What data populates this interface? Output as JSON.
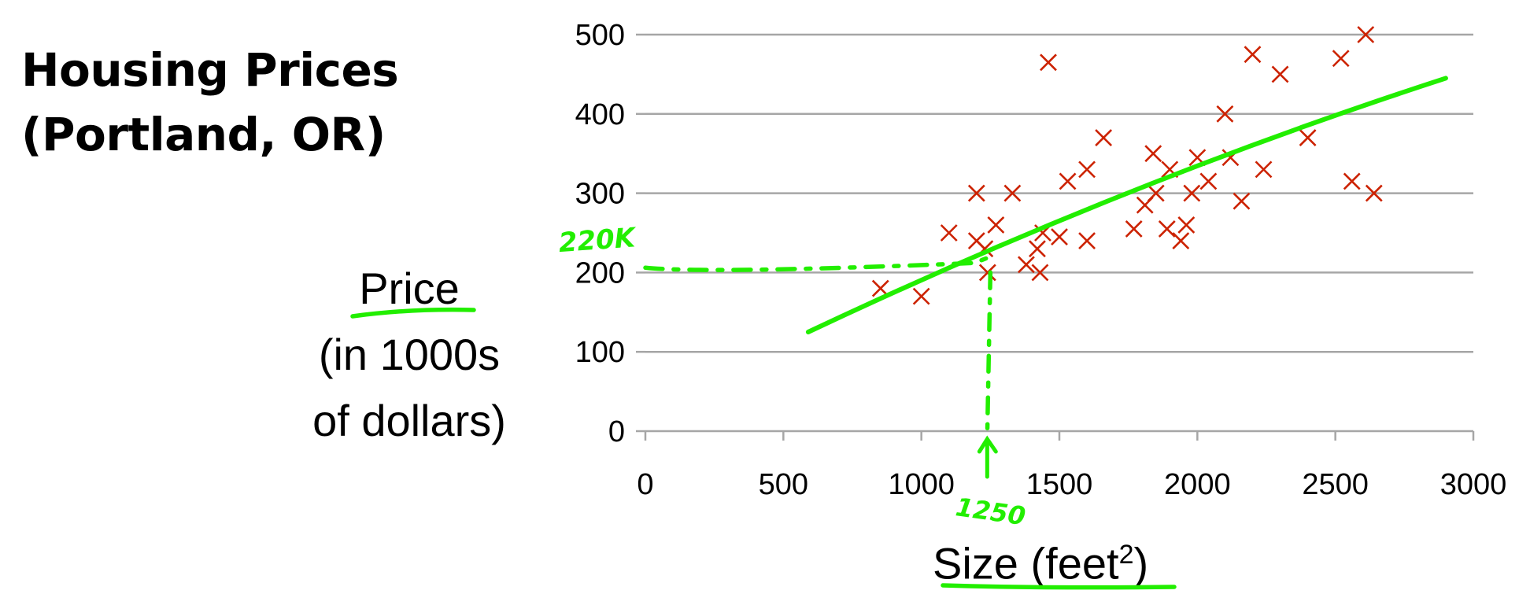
{
  "title": {
    "line1": "Housing Prices",
    "line2": "(Portland, OR)"
  },
  "chart_data": {
    "type": "scatter",
    "title": "Housing Prices (Portland, OR)",
    "ylabel": {
      "line1": "Price",
      "line2": "(in 1000s",
      "line3": "of dollars)"
    },
    "xlabel": {
      "text": "Size (feet",
      "sup": "2",
      "close": ")"
    },
    "xlim": [
      0,
      3000
    ],
    "ylim": [
      0,
      500
    ],
    "xticks": [
      0,
      500,
      1000,
      1500,
      2000,
      2500,
      3000
    ],
    "yticks": [
      0,
      100,
      200,
      300,
      400,
      500
    ],
    "grid": "horizontal",
    "series": [
      {
        "marker": "x",
        "color": "#cc2200",
        "points": [
          [
            852,
            180
          ],
          [
            1000,
            170
          ],
          [
            1100,
            250
          ],
          [
            1200,
            300
          ],
          [
            1200,
            240
          ],
          [
            1230,
            230
          ],
          [
            1240,
            200
          ],
          [
            1270,
            260
          ],
          [
            1330,
            300
          ],
          [
            1380,
            210
          ],
          [
            1420,
            230
          ],
          [
            1430,
            200
          ],
          [
            1440,
            250
          ],
          [
            1460,
            465
          ],
          [
            1500,
            245
          ],
          [
            1530,
            315
          ],
          [
            1600,
            330
          ],
          [
            1600,
            240
          ],
          [
            1660,
            370
          ],
          [
            1770,
            255
          ],
          [
            1810,
            285
          ],
          [
            1840,
            350
          ],
          [
            1850,
            300
          ],
          [
            1890,
            255
          ],
          [
            1900,
            330
          ],
          [
            1940,
            240
          ],
          [
            1960,
            260
          ],
          [
            1980,
            300
          ],
          [
            2000,
            345
          ],
          [
            2040,
            315
          ],
          [
            2100,
            400
          ],
          [
            2120,
            345
          ],
          [
            2160,
            290
          ],
          [
            2200,
            475
          ],
          [
            2240,
            330
          ],
          [
            2300,
            450
          ],
          [
            2400,
            370
          ],
          [
            2520,
            470
          ],
          [
            2560,
            315
          ],
          [
            2610,
            500
          ],
          [
            2640,
            300
          ]
        ]
      }
    ],
    "fit_line": {
      "color": "#22ee00",
      "x": [
        590,
        2900
      ],
      "y": [
        125,
        445
      ]
    },
    "annotations": [
      {
        "text": "220K",
        "x": 1250,
        "y": 220
      },
      {
        "text": "1250",
        "x": 1250,
        "y": 0
      }
    ]
  },
  "colors": {
    "marker": "#cc2200",
    "ink": "#22ee00",
    "grid": "#a6a6a6"
  }
}
